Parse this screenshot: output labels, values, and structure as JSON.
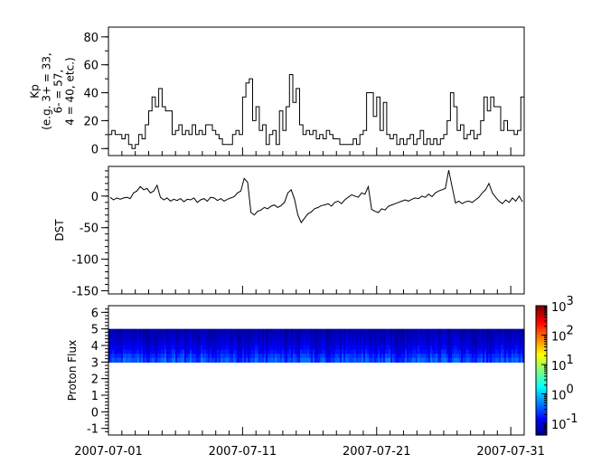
{
  "chart_data": [
    {
      "type": "line",
      "step": true,
      "ylabel_lines": [
        "Kp",
        "(e.g. 3+ = 33,",
        "6- = 57,",
        "4 = 40, etc.)"
      ],
      "ylim": [
        -5,
        87
      ],
      "yticks": [
        0,
        20,
        40,
        60,
        80
      ],
      "xlim": [
        "2007-07-01",
        "2007-08-01"
      ],
      "samples_per_day": 4,
      "values": [
        10,
        13,
        10,
        10,
        7,
        10,
        3,
        0,
        3,
        10,
        7,
        17,
        27,
        37,
        30,
        43,
        30,
        27,
        27,
        10,
        13,
        17,
        10,
        13,
        10,
        17,
        10,
        13,
        10,
        17,
        17,
        13,
        10,
        7,
        3,
        3,
        3,
        10,
        13,
        10,
        37,
        47,
        50,
        20,
        30,
        13,
        17,
        3,
        10,
        13,
        3,
        27,
        13,
        30,
        53,
        33,
        43,
        17,
        10,
        13,
        10,
        13,
        7,
        10,
        7,
        13,
        10,
        7,
        7,
        3,
        3,
        3,
        3,
        7,
        3,
        10,
        13,
        40,
        40,
        23,
        37,
        13,
        33,
        10,
        7,
        10,
        3,
        7,
        3,
        7,
        10,
        3,
        7,
        13,
        3,
        7,
        3,
        7,
        3,
        7,
        10,
        20,
        40,
        30,
        13,
        17,
        7,
        10,
        13,
        7,
        10,
        20,
        37,
        27,
        37,
        30,
        30,
        13,
        20,
        13,
        13,
        10,
        13,
        37
      ],
      "color": "#000000"
    },
    {
      "type": "line",
      "ylabel": "DST",
      "ylim": [
        -155,
        47
      ],
      "yticks": [
        0,
        -50,
        -100,
        -150
      ],
      "xlim": [
        "2007-07-01",
        "2007-08-01"
      ],
      "samples_per_day": 4,
      "values": [
        -2,
        -6,
        -3,
        -5,
        -3,
        -2,
        -4,
        5,
        8,
        15,
        10,
        12,
        5,
        8,
        17,
        -2,
        -6,
        -3,
        -8,
        -5,
        -7,
        -4,
        -9,
        -5,
        -6,
        -3,
        -10,
        -6,
        -4,
        -8,
        -2,
        -3,
        -7,
        -4,
        -8,
        -5,
        -3,
        -1,
        5,
        8,
        28,
        22,
        -26,
        -30,
        -24,
        -22,
        -18,
        -20,
        -16,
        -14,
        -18,
        -15,
        -10,
        5,
        10,
        -5,
        -30,
        -42,
        -35,
        -28,
        -25,
        -20,
        -18,
        -15,
        -14,
        -12,
        -16,
        -10,
        -8,
        -12,
        -6,
        -2,
        2,
        0,
        -2,
        5,
        3,
        15,
        -21,
        -24,
        -26,
        -20,
        -22,
        -16,
        -14,
        -12,
        -10,
        -8,
        -6,
        -8,
        -5,
        -3,
        -4,
        0,
        -2,
        3,
        -1,
        5,
        8,
        10,
        12,
        41,
        15,
        -11,
        -8,
        -12,
        -9,
        -8,
        -10,
        -6,
        -2,
        5,
        10,
        20,
        5,
        -2,
        -8,
        -12,
        -6,
        -10,
        -3,
        -8,
        0,
        -9
      ],
      "color": "#000000"
    },
    {
      "type": "heatmap",
      "ylabel": "Proton Flux",
      "ylim": [
        -1.4,
        6.4
      ],
      "yticks": [
        -1,
        0,
        1,
        2,
        3,
        4,
        5,
        6
      ],
      "xlim": [
        "2007-07-01",
        "2007-08-01"
      ],
      "xticks": [
        "2007-07-01",
        "2007-07-11",
        "2007-07-21",
        "2007-07-31"
      ],
      "band_range": [
        3,
        5
      ],
      "flux_by_bin_top_to_bottom": [
        0.06,
        0.07,
        0.08,
        0.09,
        0.11,
        0.14,
        0.2,
        0.28
      ],
      "colorbar": {
        "scale": "log",
        "range": [
          0.04,
          1000
        ],
        "tick_labels": [
          {
            "base": "10",
            "exp": "3"
          },
          {
            "base": "10",
            "exp": "2"
          },
          {
            "base": "10",
            "exp": "1"
          },
          {
            "base": "10",
            "exp": "0"
          },
          {
            "base": "10",
            "exp": "-1"
          }
        ],
        "colormap": "jet"
      }
    }
  ]
}
